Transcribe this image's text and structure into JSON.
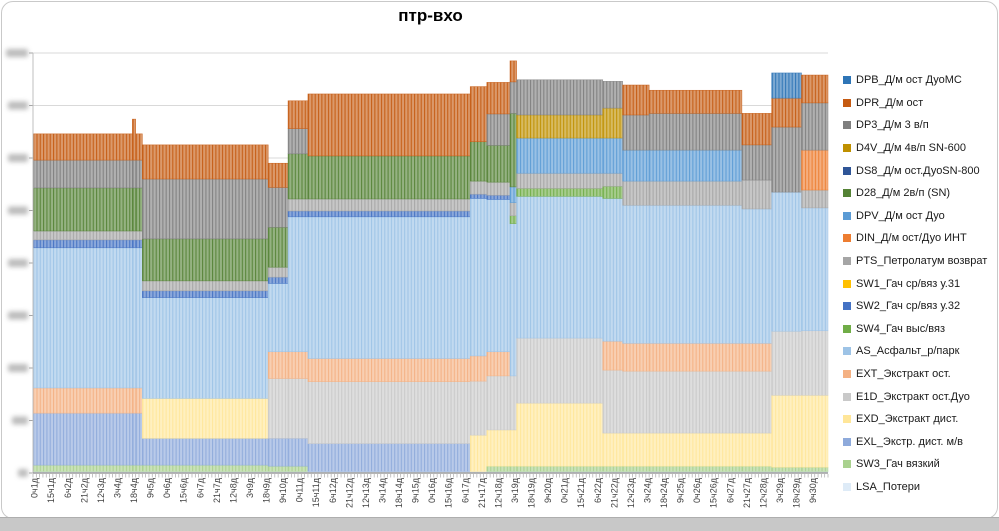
{
  "title": "птр-вхо",
  "bottom_strip_color": "#c8c8c8",
  "legend": {
    "position": "right"
  },
  "chart_data": {
    "type": "bar",
    "subtype": "stacked-columns",
    "title": "птр-вхо",
    "grid": true,
    "legend_position": "right",
    "x_axis": {
      "bars_total": 240,
      "bars_per_label": 5,
      "tick_labels": [
        "0ч1д",
        "15ч1д",
        "6ч2д",
        "21ч2д",
        "12ч3д",
        "3ч4д",
        "18ч4д",
        "9ч5д",
        "0ч6д",
        "15ч6д",
        "6ч7д",
        "21ч7д",
        "12ч8д",
        "3ч9д",
        "18ч9д",
        "9ч10д",
        "0ч11д",
        "15ч11д",
        "6ч12д",
        "21ч12д",
        "12ч13д",
        "3ч14д",
        "18ч14д",
        "9ч15д",
        "0ч16д",
        "15ч16д",
        "6ч17д",
        "21ч17д",
        "12ч18д",
        "3ч19д",
        "18ч19д",
        "9ч20д",
        "0ч21д",
        "15ч21д",
        "6ч22д",
        "21ч22д",
        "12ч23д",
        "3ч24д",
        "18ч24д",
        "9ч25д",
        "0ч26д",
        "15ч26д",
        "6ч27д",
        "21ч27д",
        "12ч28д",
        "3ч29д",
        "18ч29д",
        "9ч30д"
      ]
    },
    "y_axis": {
      "tick_labels_redacted": true,
      "note": "axis numbers are blurred/unreadable in source image; values below are relative units, 100 units per gridline interval",
      "min": 0,
      "max": 800,
      "gridline_step": 100
    },
    "series": [
      {
        "id": "DPB",
        "label": "DPB_Д/м ост ДуоМС",
        "color": "#2E75B6"
      },
      {
        "id": "DPR",
        "label": "DPR_Д/м ост",
        "color": "#C55A11"
      },
      {
        "id": "DP3",
        "label": "DP3_Д/м 3 в/п",
        "color": "#7F7F7F"
      },
      {
        "id": "D4V",
        "label": "D4V_Д/м 4в/п SN-600",
        "color": "#BF9000"
      },
      {
        "id": "DS8",
        "label": "DS8_Д/м ост.ДуоSN-800",
        "color": "#2F5597"
      },
      {
        "id": "D28",
        "label": "D28_Д/м 2в/п (SN)",
        "color": "#548235"
      },
      {
        "id": "DPV",
        "label": "DPV_Д/м ост Дуо",
        "color": "#5B9BD5"
      },
      {
        "id": "DIN",
        "label": "DIN_Д/м ост/Дуо ИНТ",
        "color": "#ED7D31"
      },
      {
        "id": "PTS",
        "label": "PTS_Петролатум возврат",
        "color": "#A5A5A5"
      },
      {
        "id": "SW1",
        "label": "SW1_Гач ср/вяз у.31",
        "color": "#FFC000"
      },
      {
        "id": "SW2",
        "label": "SW2_Гач ср/вяз у.32",
        "color": "#4472C4"
      },
      {
        "id": "SW4",
        "label": "SW4_Гач выс/вяз",
        "color": "#70AD47"
      },
      {
        "id": "AS",
        "label": "AS_Асфальт_р/парк",
        "color": "#9DC3E6"
      },
      {
        "id": "EXT",
        "label": "EXT_Экстракт ост.",
        "color": "#F4B183"
      },
      {
        "id": "E1D",
        "label": "E1D_Экстракт ост.Дуо",
        "color": "#C9C9C9"
      },
      {
        "id": "EXD",
        "label": "EXD_Экстракт дист.",
        "color": "#FFE699"
      },
      {
        "id": "EXL",
        "label": "EXL_Экстр. дист. м/в",
        "color": "#8EAADB"
      },
      {
        "id": "SW3",
        "label": "SW3_Гач вязкий",
        "color": "#A9D18E"
      },
      {
        "id": "LSA",
        "label": "LSA_Потери",
        "color": "#DEEBF7"
      }
    ],
    "stack_order_bottom_to_top": [
      "LSA",
      "SW3",
      "EXL",
      "EXD",
      "E1D",
      "EXT",
      "AS",
      "SW4",
      "SW2",
      "SW1",
      "PTS",
      "DIN",
      "DPV",
      "D28",
      "DS8",
      "D4V",
      "DP3",
      "DPR",
      "DPB"
    ],
    "blocks": [
      {
        "bars": 30,
        "values": {
          "LSA": 3,
          "SW3": 12,
          "EXL": 99,
          "EXT": 48,
          "AS": 267,
          "SW2": 15,
          "PTS": 17,
          "D28": 82,
          "DP3": 53,
          "DPR": 50
        }
      },
      {
        "bars": 1,
        "values": {
          "LSA": 3,
          "SW3": 12,
          "EXL": 99,
          "EXT": 48,
          "AS": 267,
          "SW2": 15,
          "PTS": 17,
          "D28": 82,
          "DP3": 53,
          "DPR": 78
        }
      },
      {
        "bars": 2,
        "values": {
          "LSA": 3,
          "SW3": 12,
          "EXL": 99,
          "EXT": 48,
          "AS": 267,
          "SW2": 15,
          "PTS": 17,
          "D28": 82,
          "DP3": 53,
          "DPR": 50
        }
      },
      {
        "bars": 38,
        "values": {
          "LSA": 3,
          "SW3": 12,
          "EXL": 51,
          "EXD": 76,
          "AS": 192,
          "SW2": 13,
          "PTS": 19,
          "D28": 80,
          "DP3": 114,
          "DPR": 65
        }
      },
      {
        "bars": 6,
        "values": {
          "LSA": 3,
          "SW3": 10,
          "EXL": 53,
          "E1D": 114,
          "EXT": 51,
          "AS": 130,
          "SW2": 12,
          "PTS": 19,
          "D28": 76,
          "DP3": 76,
          "DPR": 46
        }
      },
      {
        "bars": 6,
        "values": {
          "LSA": 3,
          "SW3": 10,
          "EXL": 53,
          "E1D": 114,
          "EXT": 51,
          "AS": 257,
          "SW2": 11,
          "PTS": 23,
          "D28": 86,
          "DP3": 48,
          "DPR": 53
        }
      },
      {
        "bars": 49,
        "values": {
          "LSA": 3,
          "EXL": 53,
          "E1D": 118,
          "EXT": 44,
          "AS": 270,
          "SW2": 11,
          "PTS": 23,
          "D28": 82,
          "DPR": 118
        }
      },
      {
        "bars": 5,
        "values": {
          "LSA": 3,
          "EXD": 69,
          "E1D": 103,
          "EXT": 48,
          "AS": 300,
          "SW2": 8,
          "PTS": 25,
          "D28": 75,
          "DPR": 105
        }
      },
      {
        "bars": 7,
        "values": {
          "LSA": 3,
          "SW3": 10,
          "EXD": 69,
          "E1D": 103,
          "EXT": 46,
          "AS": 290,
          "SW2": 8,
          "PTS": 25,
          "D28": 70,
          "DP3": 60,
          "DPR": 60
        }
      },
      {
        "bars": 2,
        "values": {
          "LSA": 3,
          "SW3": 10,
          "EXD": 69,
          "E1D": 103,
          "AS": 290,
          "SW4": 15,
          "PTS": 25,
          "DPV": 30,
          "D28": 140,
          "DP3": 60,
          "DPR": 40
        }
      },
      {
        "bars": 26,
        "values": {
          "LSA": 3,
          "SW3": 10,
          "EXD": 120,
          "E1D": 124,
          "AS": 270,
          "SW4": 15,
          "PTS": 29,
          "DPV": 67,
          "D4V": 44,
          "DP3": 67
        }
      },
      {
        "bars": 6,
        "values": {
          "LSA": 3,
          "SW3": 10,
          "EXD": 63,
          "E1D": 120,
          "EXT": 55,
          "AS": 272,
          "SW4": 23,
          "PTS": 25,
          "DPV": 67,
          "D4V": 57,
          "DP3": 51
        }
      },
      {
        "bars": 8,
        "values": {
          "LSA": 3,
          "SW3": 10,
          "EXD": 63,
          "E1D": 118,
          "EXT": 53,
          "AS": 263,
          "PTS": 46,
          "DPV": 59,
          "DP3": 67,
          "DPR": 57
        }
      },
      {
        "bars": 28,
        "values": {
          "LSA": 3,
          "SW3": 10,
          "EXD": 63,
          "E1D": 118,
          "EXT": 53,
          "AS": 263,
          "PTS": 46,
          "DPV": 59,
          "DP3": 70,
          "DPR": 44
        }
      },
      {
        "bars": 9,
        "values": {
          "LSA": 3,
          "SW3": 10,
          "EXD": 63,
          "E1D": 118,
          "EXT": 53,
          "AS": 256,
          "PTS": 55,
          "DP3": 67,
          "DPR": 60
        }
      },
      {
        "bars": 9,
        "values": {
          "LSA": 3,
          "SW3": 8,
          "EXD": 137,
          "E1D": 122,
          "AS": 265,
          "DP3": 124,
          "DPR": 55,
          "DPB": 48
        }
      },
      {
        "bars": 8,
        "values": {
          "LSA": 3,
          "SW3": 8,
          "EXD": 137,
          "E1D": 123,
          "AS": 234,
          "PTS": 34,
          "DIN": 76,
          "DP3": 90,
          "DPR": 53
        }
      }
    ]
  }
}
